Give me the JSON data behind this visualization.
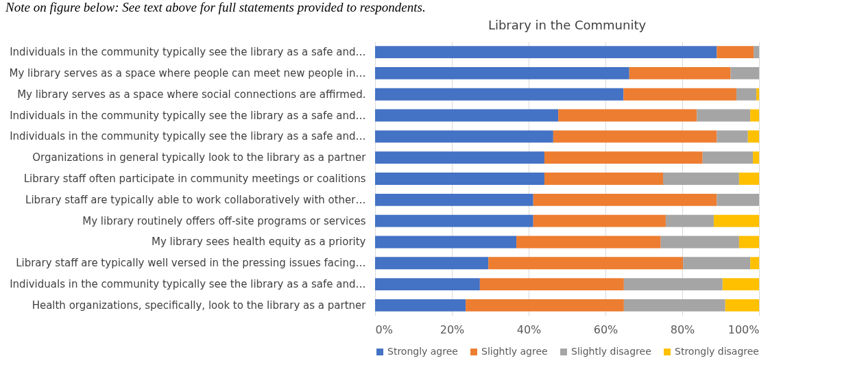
{
  "chart_data": {
    "type": "bar",
    "orientation": "horizontal",
    "stacked": true,
    "title": "Library in the Community",
    "annotations": [
      "Note on figure below: See text above for full statements provided to respondents."
    ],
    "categories": [
      "Individuals in the community typically see the library as a safe and…",
      "My library serves as a space where people can meet new people in…",
      "My library serves as a space where social connections are affirmed.",
      "Individuals in the community typically see the library as a safe and…",
      "Individuals in the community typically see the library as a safe and…",
      "Organizations in general typically look to the library as a partner",
      "Library staff often participate in community meetings or coalitions",
      "Library staff are typically able to work collaboratively with other…",
      "My library routinely offers off-site programs or services",
      "My library sees health equity as a priority",
      "Library staff are typically well versed in the pressing issues facing…",
      "Individuals in the community typically see the library as a safe and…",
      "Health organizations, specifically, look to the library as a partner"
    ],
    "series": [
      {
        "name": "Strongly agree",
        "color": "#4472c4",
        "values": [
          89,
          66.2,
          64.7,
          47.7,
          46.4,
          44.1,
          44.1,
          41.2,
          41.2,
          36.8,
          29.5,
          27.3,
          23.6
        ]
      },
      {
        "name": "Slightly agree",
        "color": "#ed7d31",
        "values": [
          9.6,
          26.4,
          29.4,
          36.1,
          42.6,
          41.2,
          30.9,
          47.8,
          34.5,
          37.6,
          50.7,
          37.5,
          41.2
        ]
      },
      {
        "name": "Slightly disagree",
        "color": "#a5a5a5",
        "values": [
          1.4,
          7.4,
          5.2,
          13.9,
          8.1,
          13.1,
          19.8,
          11,
          12.5,
          20.4,
          17.5,
          25.7,
          26.4
        ]
      },
      {
        "name": "Strongly disagree",
        "color": "#ffc000",
        "values": [
          0,
          0,
          0.7,
          2.3,
          2.9,
          1.6,
          5.2,
          0,
          11.8,
          5.2,
          2.3,
          9.5,
          8.8
        ]
      }
    ],
    "xlim": [
      0,
      100
    ],
    "xticks": [
      {
        "value": 0,
        "label": "0%"
      },
      {
        "value": 20,
        "label": "20%"
      },
      {
        "value": 40,
        "label": "40%"
      },
      {
        "value": 60,
        "label": "60%"
      },
      {
        "value": 80,
        "label": "80%"
      },
      {
        "value": 100,
        "label": "100%"
      }
    ],
    "grid": "x",
    "legend": "bottom"
  }
}
